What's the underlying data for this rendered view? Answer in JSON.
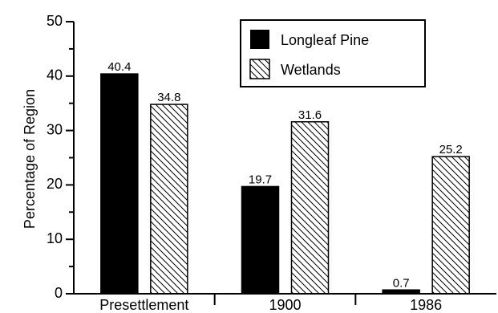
{
  "chart_data": {
    "type": "bar",
    "title": "",
    "xlabel": "",
    "ylabel": "Percentage of Region",
    "categories": [
      "Presettlement",
      "1900",
      "1986"
    ],
    "series": [
      {
        "name": "Longleaf Pine",
        "values": [
          40.4,
          19.7,
          0.7
        ],
        "fill": "solid",
        "color": "#000000"
      },
      {
        "name": "Wetlands",
        "values": [
          34.8,
          31.6,
          25.2
        ],
        "fill": "diagonal-hatch",
        "color": "#000000"
      }
    ],
    "data_labels": [
      [
        "40.4",
        "19.7",
        "0.7"
      ],
      [
        "34.8",
        "31.6",
        "25.2"
      ]
    ],
    "ylim": [
      0,
      50
    ],
    "yticks": [
      0,
      10,
      20,
      30,
      40,
      50
    ],
    "ytick_labels": [
      "0",
      "10",
      "20",
      "30",
      "40",
      "50"
    ],
    "grid": false,
    "legend_position": "top-right"
  }
}
